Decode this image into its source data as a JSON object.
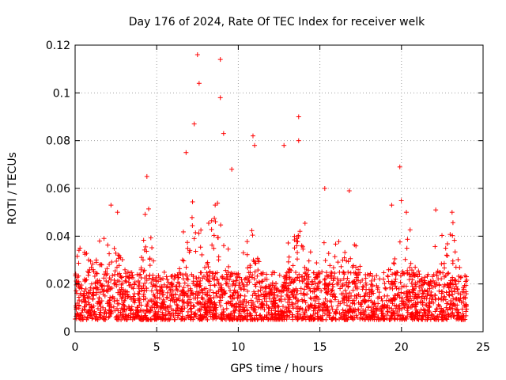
{
  "chart_data": {
    "type": "scatter",
    "title": "Day 176 of 2024, Rate Of TEC Index for receiver welk",
    "xlabel": "GPS time / hours",
    "ylabel": "ROTI / TECUs",
    "xlim": [
      0,
      25
    ],
    "ylim": [
      0,
      0.12
    ],
    "x_ticks": [
      0,
      5,
      10,
      15,
      20,
      25
    ],
    "x_tick_labels": [
      "0",
      "5",
      "10",
      "15",
      "20",
      "25"
    ],
    "y_ticks": [
      0,
      0.02,
      0.04,
      0.06,
      0.08,
      0.1,
      0.12
    ],
    "y_tick_labels": [
      "0",
      "0.02",
      "0.04",
      "0.06",
      "0.08",
      "0.1",
      "0.12"
    ],
    "grid": true,
    "legend": "none",
    "marker": "plus",
    "color": "#ff0000",
    "x_range_of_data": [
      0,
      24
    ],
    "baseline_band": [
      0.005,
      0.025
    ],
    "notable_points": [
      {
        "x": 0.3,
        "y": 0.035
      },
      {
        "x": 1.5,
        "y": 0.038
      },
      {
        "x": 2.2,
        "y": 0.053
      },
      {
        "x": 2.6,
        "y": 0.05
      },
      {
        "x": 4.4,
        "y": 0.065
      },
      {
        "x": 6.8,
        "y": 0.075
      },
      {
        "x": 7.3,
        "y": 0.087
      },
      {
        "x": 7.5,
        "y": 0.116
      },
      {
        "x": 7.6,
        "y": 0.104
      },
      {
        "x": 8.9,
        "y": 0.114
      },
      {
        "x": 8.9,
        "y": 0.098
      },
      {
        "x": 9.1,
        "y": 0.083
      },
      {
        "x": 9.6,
        "y": 0.068
      },
      {
        "x": 10.9,
        "y": 0.082
      },
      {
        "x": 11.0,
        "y": 0.078
      },
      {
        "x": 12.8,
        "y": 0.078
      },
      {
        "x": 13.7,
        "y": 0.09
      },
      {
        "x": 13.7,
        "y": 0.08
      },
      {
        "x": 15.3,
        "y": 0.06
      },
      {
        "x": 16.8,
        "y": 0.059
      },
      {
        "x": 19.4,
        "y": 0.053
      },
      {
        "x": 19.9,
        "y": 0.069
      },
      {
        "x": 20.3,
        "y": 0.05
      },
      {
        "x": 22.1,
        "y": 0.051
      },
      {
        "x": 23.1,
        "y": 0.05
      }
    ]
  }
}
